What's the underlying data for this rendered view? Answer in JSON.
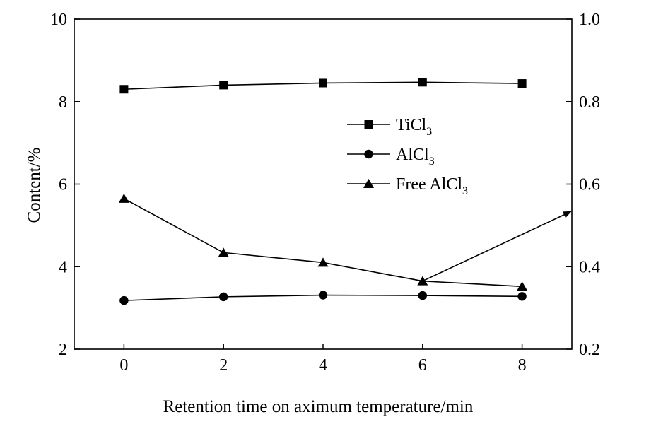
{
  "chart_data": {
    "type": "line",
    "xlabel": "Retention time on aximum temperature/min",
    "ylabel": "Content/%",
    "xlim": [
      -1,
      9
    ],
    "ylim": [
      2,
      10
    ],
    "ylim_right": [
      0.2,
      1.0
    ],
    "x_ticks": [
      0,
      2,
      4,
      6,
      8
    ],
    "x_tick_labels": [
      "0",
      "2",
      "4",
      "6",
      "8"
    ],
    "y_ticks": [
      2,
      4,
      6,
      8,
      10
    ],
    "y_tick_labels": [
      "2",
      "4",
      "6",
      "8",
      "10"
    ],
    "y_right_ticks": [
      0.2,
      0.4,
      0.6,
      0.8,
      1.0
    ],
    "y_right_tick_labels": [
      "0.2",
      "0.4",
      "0.6",
      "0.8",
      "1.0"
    ],
    "x": [
      0,
      2,
      4,
      6,
      8
    ],
    "series": [
      {
        "name": "TiCl",
        "subscript": "3",
        "marker": "square",
        "axis": "left",
        "values": [
          8.3,
          8.4,
          8.45,
          8.47,
          8.44
        ]
      },
      {
        "name": "AlCl",
        "subscript": "3",
        "marker": "circle",
        "axis": "left",
        "values": [
          3.18,
          3.27,
          3.31,
          3.3,
          3.28
        ]
      },
      {
        "name": "Free AlCl",
        "subscript": "3",
        "marker": "triangle",
        "axis": "right",
        "values": [
          0.565,
          0.434,
          0.41,
          0.365,
          0.352
        ]
      }
    ],
    "annotations": [
      {
        "type": "arrow",
        "description": "arrow pointing to right axis",
        "from": [
          6,
          0.365
        ],
        "to": [
          9,
          0.533
        ]
      }
    ],
    "legend_position": "center-right",
    "grid": false
  }
}
